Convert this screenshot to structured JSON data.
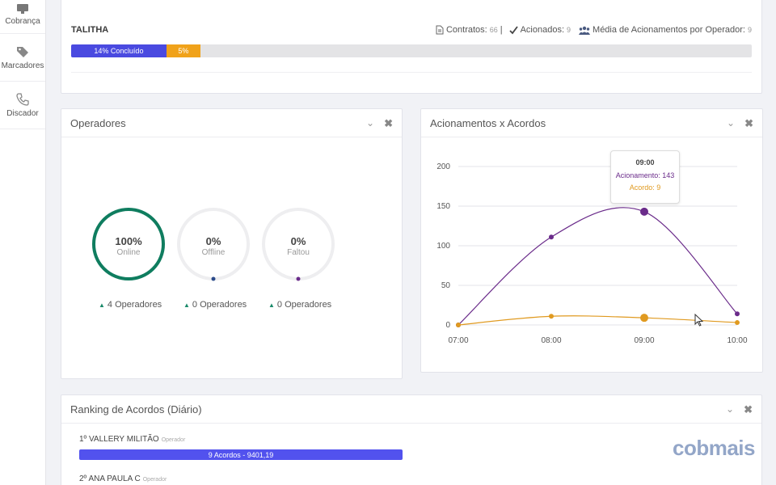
{
  "sidebar": {
    "items": [
      {
        "label": "Cobrança",
        "icon": "monitor-icon"
      },
      {
        "label": "Marcadores",
        "icon": "tag-icon"
      },
      {
        "label": "Discador",
        "icon": "phone-icon"
      }
    ]
  },
  "top": {
    "name": "TALITHA",
    "contratos_label": "Contratos:",
    "contratos_value": "66",
    "separator": "|",
    "acionados_label": "Acionados:",
    "acionados_value": "9",
    "media_label": "Média de Acionamentos por Operador:",
    "media_value": "9",
    "progress": {
      "done_label": "14% Concluído",
      "done_fraction": 0.14,
      "pending_label": "5%",
      "pending_fraction": 0.05
    }
  },
  "operadores": {
    "title": "Operadores",
    "gauges": [
      {
        "pct": "100%",
        "label": "Online",
        "fraction": 1.0,
        "color": "#0f7d5f",
        "count": "4 Operadores"
      },
      {
        "pct": "0%",
        "label": "Offline",
        "fraction": 0.0,
        "color": "#2b4a8a",
        "count": "0 Operadores"
      },
      {
        "pct": "0%",
        "label": "Faltou",
        "fraction": 0.0,
        "color": "#6a2b8a",
        "count": "0 Operadores"
      }
    ]
  },
  "chart_panel": {
    "title": "Acionamentos x Acordos",
    "tooltip": {
      "time": "09:00",
      "acionamento": "Acionamento: 143",
      "acordo": "Acordo: 9"
    }
  },
  "chart_data": {
    "type": "line",
    "x": [
      "07:00",
      "08:00",
      "09:00",
      "10:00"
    ],
    "series": [
      {
        "name": "Acionamento",
        "values": [
          0,
          111,
          143,
          14
        ],
        "color": "#6a2b8a"
      },
      {
        "name": "Acordo",
        "values": [
          0,
          11,
          9,
          3
        ],
        "color": "#e09a20"
      }
    ],
    "yticks": [
      0,
      50,
      100,
      150,
      200
    ],
    "ylim": [
      0,
      200
    ],
    "grid": true
  },
  "ranking": {
    "title": "Ranking de Acordos (Diário)",
    "entries": [
      {
        "name": "1º VALLERY MILITÃO",
        "role": "Operador",
        "bar_label": "9 Acordos - 9401,19"
      },
      {
        "name": "2º ANA PAULA C",
        "role": "Operador"
      }
    ],
    "brand": "cobmais"
  },
  "tools": {
    "collapse": "⌄",
    "close": "✖"
  }
}
